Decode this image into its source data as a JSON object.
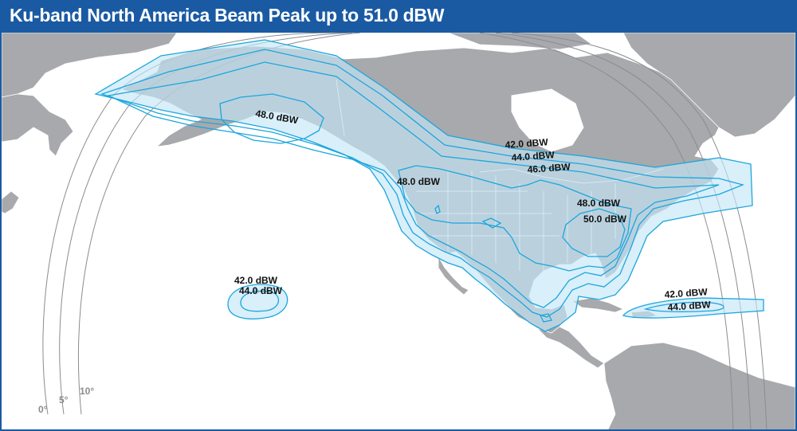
{
  "title": "Ku-band North America Beam Peak up to 51.0 dBW",
  "contours": {
    "c42_north": "42.0 dBW",
    "c44_north": "44.0 dBW",
    "c46_north": "46.0 dBW",
    "c48_alaska": "48.0 dBW",
    "c48_west": "48.0 dBW",
    "c48_east": "48.0 dBW",
    "c50_east": "50.0 dBW",
    "c42_hawaii": "42.0 dBW",
    "c44_hawaii": "44.0 dBW",
    "c42_caribbean": "42.0 dBW",
    "c44_caribbean": "44.0 dBW"
  },
  "elevation": {
    "e0": "0°",
    "e5": "5°",
    "e10": "10°"
  },
  "colors": {
    "title_bar": "#1a5aa3",
    "land": "#a7a9ac",
    "beam_fill": "#c5e6f7",
    "beam_stroke": "#1ba6dd",
    "elevation_line": "#8a8c8e"
  }
}
